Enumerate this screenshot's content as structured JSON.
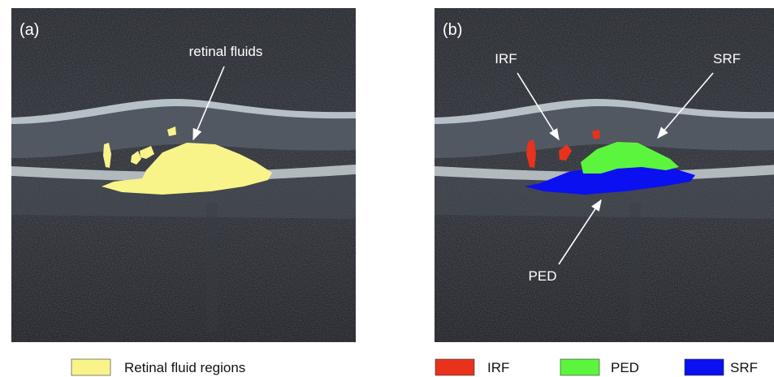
{
  "panels": [
    {
      "label": "(a)",
      "annotations": [
        "retinal fluids"
      ],
      "legend": [
        {
          "name": "Retinal fluid regions",
          "color": "#f9f48a"
        }
      ]
    },
    {
      "label": "(b)",
      "annotations": [
        "IRF",
        "SRF",
        "PED"
      ],
      "legend": [
        {
          "name": "IRF",
          "color": "#e8321c"
        },
        {
          "name": "PED",
          "color": "#5cf53e"
        },
        {
          "name": "SRF",
          "color": "#0a10f0"
        }
      ]
    }
  ]
}
